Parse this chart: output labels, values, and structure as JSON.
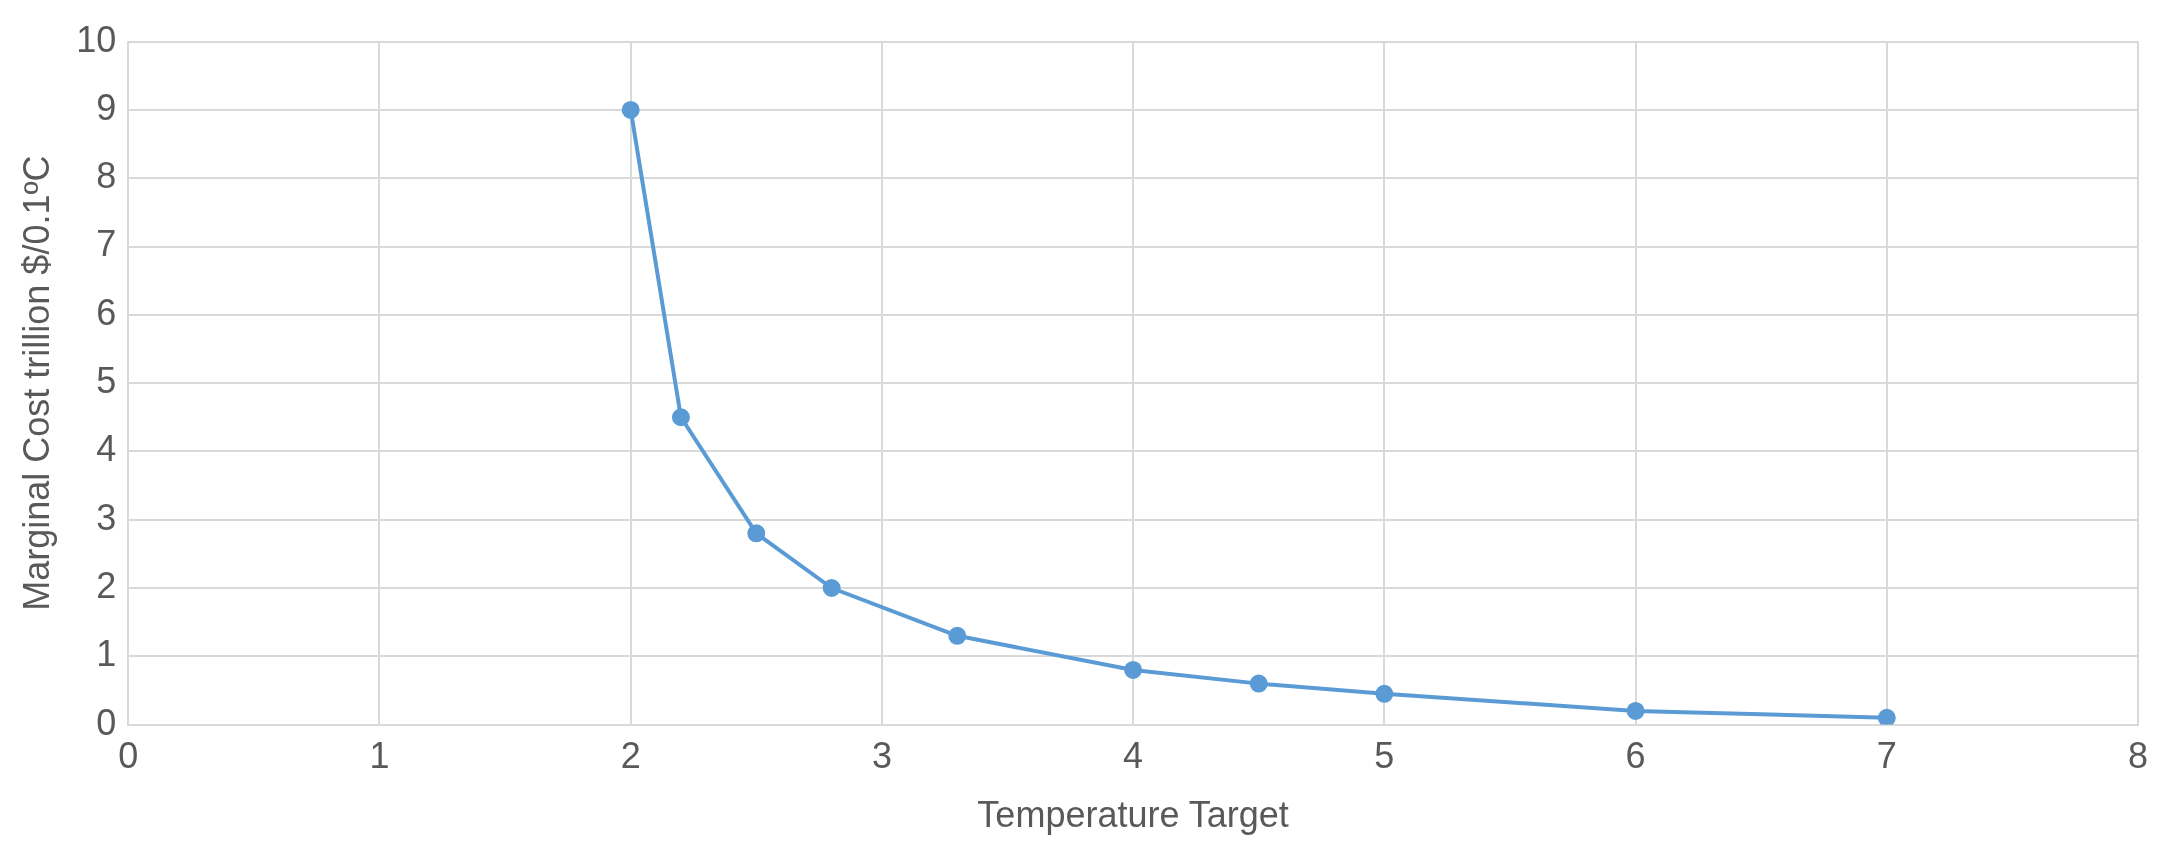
{
  "chart_data": {
    "type": "line",
    "xlabel": "Temperature Target",
    "ylabel": "Marginal Cost trillion $/0.1ºC",
    "series": [
      {
        "color": "#5b9bd5",
        "x": [
          2,
          2.2,
          2.5,
          2.8,
          3.3,
          4,
          4.5,
          5,
          6,
          7
        ],
        "values": [
          9,
          4.5,
          2.8,
          2.0,
          1.3,
          0.8,
          0.6,
          0.45,
          0.2,
          0.1
        ]
      }
    ],
    "xlim": [
      0,
      8
    ],
    "xticks": [
      0,
      1,
      2,
      3,
      4,
      5,
      6,
      7,
      8
    ],
    "ylim": [
      0,
      10
    ],
    "yticks": [
      0,
      1,
      2,
      3,
      4,
      5,
      6,
      7,
      8,
      9,
      10
    ],
    "grid": true,
    "legend": false,
    "marker": "circle",
    "line_style": "solid"
  }
}
